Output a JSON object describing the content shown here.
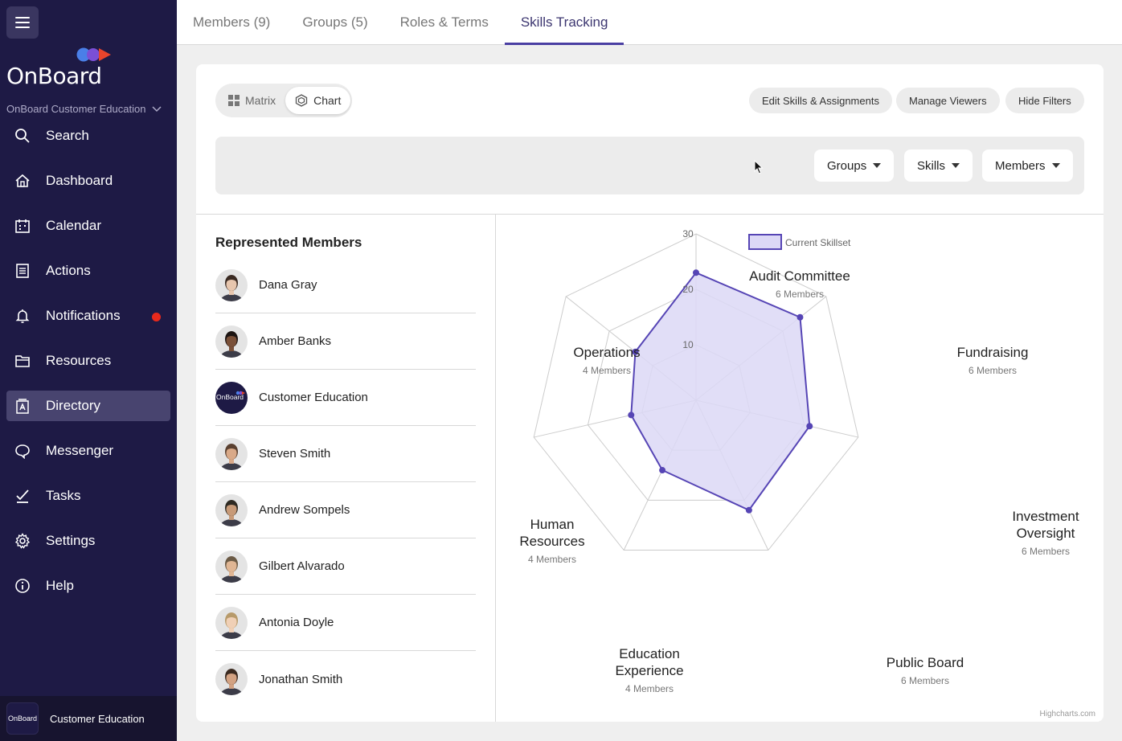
{
  "sidebar": {
    "logo_text": "OnBoard",
    "org_name": "OnBoard Customer Education",
    "nav": [
      {
        "label": "Search",
        "icon": "search-icon"
      },
      {
        "label": "Dashboard",
        "icon": "home-icon"
      },
      {
        "label": "Calendar",
        "icon": "calendar-icon"
      },
      {
        "label": "Actions",
        "icon": "actions-icon"
      },
      {
        "label": "Notifications",
        "icon": "bell-icon",
        "badge": true
      },
      {
        "label": "Resources",
        "icon": "folder-icon"
      },
      {
        "label": "Directory",
        "icon": "directory-icon",
        "active": true
      },
      {
        "label": "Messenger",
        "icon": "chat-icon"
      },
      {
        "label": "Tasks",
        "icon": "check-icon"
      },
      {
        "label": "Settings",
        "icon": "gear-icon"
      },
      {
        "label": "Help",
        "icon": "info-icon"
      }
    ],
    "footer": {
      "avatar_text": "OnBoard",
      "name": "Customer Education"
    }
  },
  "tabs": [
    {
      "label": "Members (9)"
    },
    {
      "label": "Groups (5)"
    },
    {
      "label": "Roles & Terms"
    },
    {
      "label": "Skills Tracking",
      "active": true
    }
  ],
  "toolbar": {
    "view_toggle": [
      {
        "label": "Matrix"
      },
      {
        "label": "Chart",
        "active": true
      }
    ],
    "edit_skills": "Edit Skills & Assignments",
    "manage_viewers": "Manage Viewers",
    "hide_filters": "Hide Filters"
  },
  "filters": {
    "groups": "Groups",
    "skills": "Skills",
    "members": "Members"
  },
  "members": {
    "title": "Represented Members",
    "list": [
      {
        "name": "Dana Gray",
        "skin": "#e7c6ae",
        "hair": "#3a2a22"
      },
      {
        "name": "Amber Banks",
        "skin": "#7a5038",
        "hair": "#1c1412"
      },
      {
        "name": "Customer Education",
        "org": true,
        "avatar_text": "OnBoard"
      },
      {
        "name": "Steven Smith",
        "skin": "#d9a988",
        "hair": "#5a4030"
      },
      {
        "name": "Andrew Sompels",
        "skin": "#c79a78",
        "hair": "#2e2a22"
      },
      {
        "name": "Gilbert Alvarado",
        "skin": "#e0b694",
        "hair": "#6b5a45"
      },
      {
        "name": "Antonia Doyle",
        "skin": "#f0d0b6",
        "hair": "#b79a6a"
      },
      {
        "name": "Jonathan Smith",
        "skin": "#d3a282",
        "hair": "#3b2a20"
      }
    ]
  },
  "chart_data": {
    "type": "radar",
    "legend": "Current Skillset",
    "ylim": [
      0,
      30
    ],
    "ticks": [
      10,
      20,
      30
    ],
    "categories": [
      {
        "name": "Audit Committee",
        "sub": "6 Members"
      },
      {
        "name": "Fundraising",
        "sub": "6 Members"
      },
      {
        "name": "Investment Oversight",
        "sub": "6 Members"
      },
      {
        "name": "Public Board",
        "sub": "6 Members"
      },
      {
        "name": "Education Experience",
        "sub": "4 Members"
      },
      {
        "name": "Human Resources",
        "sub": "4 Members"
      },
      {
        "name": "Operations",
        "sub": "4 Members"
      }
    ],
    "series": [
      {
        "name": "Current Skillset",
        "values": [
          23,
          24,
          21,
          22,
          14,
          12,
          14
        ]
      }
    ],
    "color": "#5645b5",
    "fill": "#dcd8f6",
    "credit": "Highcharts.com"
  }
}
